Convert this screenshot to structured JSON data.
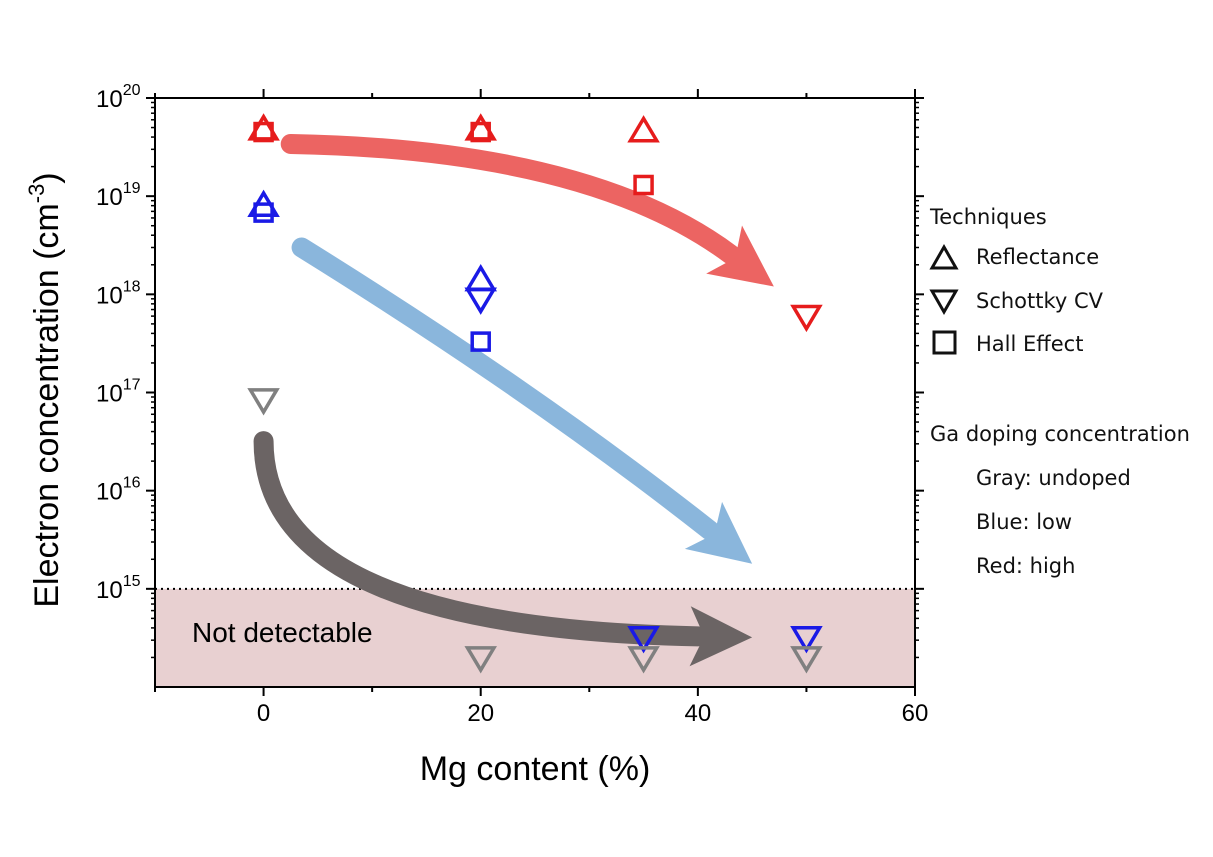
{
  "chart_data": {
    "type": "scatter",
    "xlabel": "Mg content (%)",
    "ylabel_main": "Electron concentration (cm",
    "ylabel_sup": "-3",
    "ylabel_close": ")",
    "xlim": [
      -10,
      60
    ],
    "ylim_log10": [
      14,
      20
    ],
    "y_scale": "log",
    "x_ticks": [
      0,
      20,
      40,
      60
    ],
    "y_ticks": [
      {
        "base": "10",
        "exp": "15",
        "log10": 15
      },
      {
        "base": "10",
        "exp": "16",
        "log10": 16
      },
      {
        "base": "10",
        "exp": "17",
        "log10": 17
      },
      {
        "base": "10",
        "exp": "18",
        "log10": 18
      },
      {
        "base": "10",
        "exp": "19",
        "log10": 19
      },
      {
        "base": "10",
        "exp": "20",
        "log10": 20
      }
    ],
    "detection_limit": 1000000000000000.0,
    "region_label": "Not detectable",
    "region_color": "#e8d0d1",
    "colors": {
      "gray": "#808080",
      "blue": "#1a1ae6",
      "red": "#e61c1c"
    },
    "points": [
      {
        "group": "red",
        "technique": "reflectance",
        "x": 0,
        "y": 4.8e+19
      },
      {
        "group": "red",
        "technique": "hall",
        "x": 0,
        "y": 4.5e+19
      },
      {
        "group": "red",
        "technique": "reflectance",
        "x": 20,
        "y": 4.8e+19
      },
      {
        "group": "red",
        "technique": "hall",
        "x": 20,
        "y": 4.5e+19
      },
      {
        "group": "red",
        "technique": "reflectance",
        "x": 35,
        "y": 4.6e+19
      },
      {
        "group": "red",
        "technique": "hall",
        "x": 35,
        "y": 1.3e+19
      },
      {
        "group": "red",
        "technique": "schottky",
        "x": 50,
        "y": 6e+17
      },
      {
        "group": "blue",
        "technique": "reflectance",
        "x": 0,
        "y": 8e+18
      },
      {
        "group": "blue",
        "technique": "hall",
        "x": 0,
        "y": 6.8e+18
      },
      {
        "group": "blue",
        "technique": "reflectance",
        "x": 20,
        "y": 1.4e+18
      },
      {
        "group": "blue",
        "technique": "schottky",
        "x": 20,
        "y": 9e+17
      },
      {
        "group": "blue",
        "technique": "hall",
        "x": 20,
        "y": 3.3e+17
      },
      {
        "group": "blue",
        "technique": "schottky",
        "x": 35,
        "y": 320000000000000.0
      },
      {
        "group": "blue",
        "technique": "schottky",
        "x": 50,
        "y": 320000000000000.0
      },
      {
        "group": "gray",
        "technique": "schottky",
        "x": 0,
        "y": 8.5e+16
      },
      {
        "group": "gray",
        "technique": "schottky",
        "x": 20,
        "y": 200000000000000.0
      },
      {
        "group": "gray",
        "technique": "schottky",
        "x": 35,
        "y": 200000000000000.0
      },
      {
        "group": "gray",
        "technique": "schottky",
        "x": 50,
        "y": 200000000000000.0
      }
    ],
    "trend_arrows": [
      {
        "group": "red",
        "color": "#ec6462",
        "from": [
          2.5,
          3.4e+19
        ],
        "ctrl": [
          30,
          3e+19
        ],
        "to": [
          47,
          1.2e+18
        ]
      },
      {
        "group": "blue",
        "color": "#8ab6dc",
        "from": [
          3.5,
          3e+18
        ],
        "ctrl": [
          25,
          1e+17
        ],
        "to": [
          45,
          1800000000000000.0
        ]
      },
      {
        "group": "gray",
        "color": "#6b6464",
        "from": [
          0,
          3.2e+16
        ],
        "ctrl": [
          0,
          400000000000000.0
        ],
        "to": [
          45,
          320000000000000.0
        ]
      }
    ]
  },
  "legend": {
    "techniques_title": "Techniques",
    "techniques": [
      {
        "label": "Reflectance",
        "icon": "triangle-up-icon"
      },
      {
        "label": "Schottky CV",
        "icon": "triangle-down-icon"
      },
      {
        "label": "Hall Effect",
        "icon": "square-icon"
      }
    ],
    "doping_title": "Ga doping concentration",
    "doping": [
      {
        "label": "Gray: undoped",
        "color": "#555555"
      },
      {
        "label": "Blue: low",
        "color": "#1b72c0"
      },
      {
        "label": "Red: high",
        "color": "#e61c1c"
      }
    ]
  }
}
